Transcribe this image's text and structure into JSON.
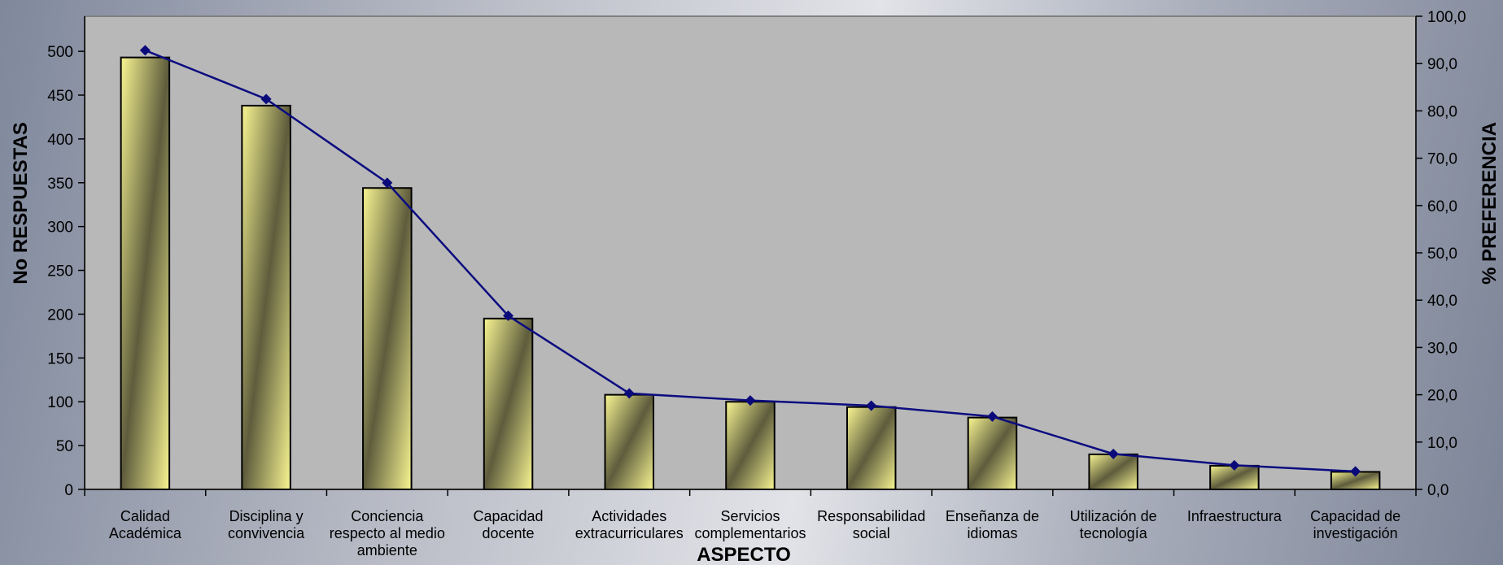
{
  "chart_data": {
    "type": "bar",
    "xlabel": "ASPECTO",
    "ylabel": "No RESPUESTAS",
    "y2label": "% PREFERENCIA",
    "ylim": [
      0,
      540
    ],
    "y2lim": [
      0,
      100
    ],
    "yticks": [
      "0",
      "50",
      "100",
      "150",
      "200",
      "250",
      "300",
      "350",
      "400",
      "450",
      "500"
    ],
    "y2ticks": [
      "0,0",
      "10,0",
      "20,0",
      "30,0",
      "40,0",
      "50,0",
      "60,0",
      "70,0",
      "80,0",
      "90,0",
      "100,0"
    ],
    "categories": [
      [
        "Calidad",
        "Académica"
      ],
      [
        "Disciplina y",
        "convivencia"
      ],
      [
        "Conciencia",
        "respecto al medio",
        "ambiente"
      ],
      [
        "Capacidad",
        "docente"
      ],
      [
        "Actividades",
        "extracurriculares"
      ],
      [
        "Servicios",
        "complementarios"
      ],
      [
        "Responsabilidad",
        "social"
      ],
      [
        "Enseñanza de",
        "idiomas"
      ],
      [
        "Utilización de",
        "tecnología"
      ],
      [
        "Infraestructura"
      ],
      [
        "Capacidad de",
        "investigación"
      ]
    ],
    "bar_values": [
      493,
      438,
      344,
      195,
      108,
      100,
      94,
      82,
      40,
      27,
      20
    ],
    "line_values": [
      92.8,
      82.5,
      64.8,
      36.7,
      20.3,
      18.8,
      17.7,
      15.4,
      7.5,
      5.1,
      3.8
    ],
    "grid": false,
    "legend": "none",
    "colors": {
      "plot_bg": "#b8b8b8",
      "bar_light": "#f8f592",
      "bar_dark": "#5e5c3c",
      "line": "#0c0c80",
      "marker": "#0a0a7a"
    }
  }
}
